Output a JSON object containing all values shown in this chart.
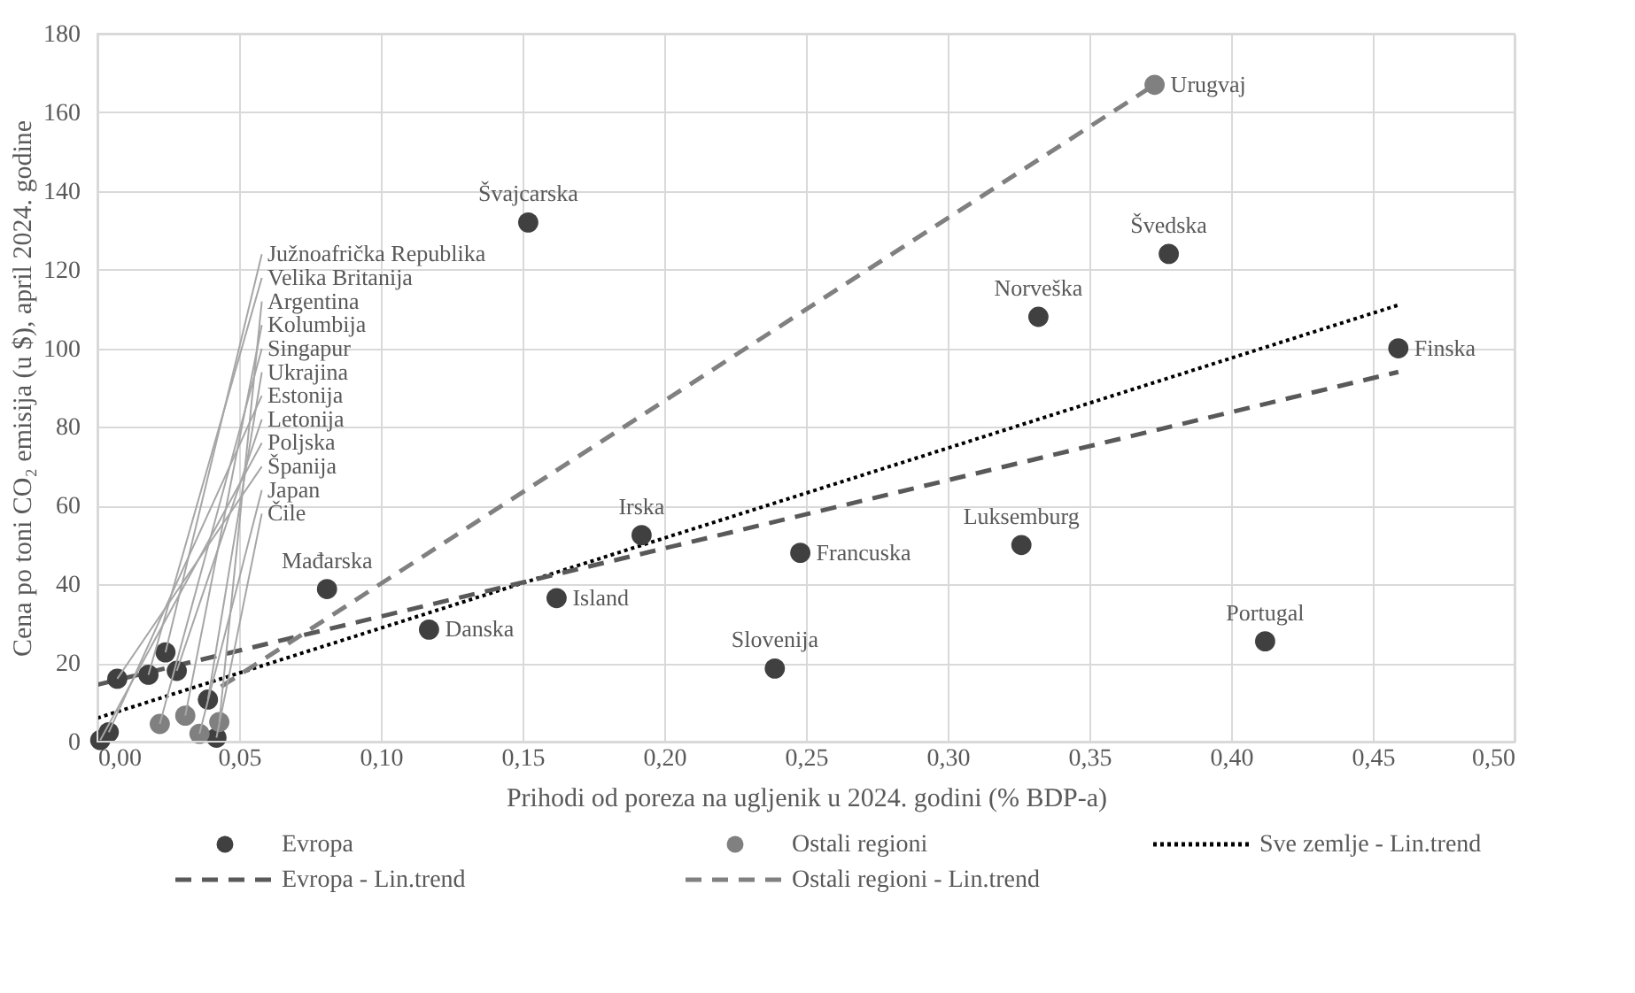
{
  "chart_data": {
    "type": "scatter",
    "xlabel": "Prihodi od poreza na ugljenik u 2024. godini  (% BDP-a)",
    "ylabel": "Cena po toni CO₂ emisija (u $), april 2024. godine",
    "xlim": [
      0,
      0.5
    ],
    "ylim": [
      0,
      180
    ],
    "xticks": [
      {
        "value": 0,
        "label": "0,00"
      },
      {
        "value": 0.05,
        "label": "0,05"
      },
      {
        "value": 0.1,
        "label": "0,10"
      },
      {
        "value": 0.15,
        "label": "0,15"
      },
      {
        "value": 0.2,
        "label": "0,20"
      },
      {
        "value": 0.25,
        "label": "0,25"
      },
      {
        "value": 0.3,
        "label": "0,30"
      },
      {
        "value": 0.35,
        "label": "0,35"
      },
      {
        "value": 0.4,
        "label": "0,40"
      },
      {
        "value": 0.45,
        "label": "0,45"
      },
      {
        "value": 0.5,
        "label": "0,50"
      }
    ],
    "yticks": [
      0,
      20,
      40,
      60,
      80,
      100,
      120,
      140,
      160,
      180
    ],
    "grid": true,
    "legend": "bottom",
    "marker": "circle",
    "series": [
      {
        "name": "Evropa",
        "color": "#404040",
        "x": [
          0.152,
          0.378,
          0.332,
          0.459,
          0.192,
          0.162,
          0.248,
          0.326,
          0.412,
          0.239,
          0.117,
          0.081,
          0.007,
          0.018,
          0.028,
          0.024,
          0.004,
          0.001,
          0.039,
          0.042
        ],
        "values": [
          132,
          124,
          108,
          100,
          52.5,
          36.5,
          48,
          50,
          25.5,
          18.6,
          28.5,
          38.8,
          16,
          17,
          18,
          22.7,
          2.4,
          0.4,
          10.7,
          1
        ]
      },
      {
        "name": "Ostali regioni",
        "color": "#808080",
        "x": [
          0.373,
          0.022,
          0.031,
          0.036,
          0.043
        ],
        "values": [
          167,
          4.5,
          6.6,
          2,
          5
        ]
      },
      {
        "name": "Sve zemlje - Lin.trend",
        "type": "line",
        "color": "#000000",
        "line_style": "dotted",
        "marker": "none",
        "x": [
          0,
          0.459
        ],
        "values": [
          6,
          111
        ]
      },
      {
        "name": "Evropa - Lin.trend",
        "type": "line",
        "color": "#595959",
        "line_style": "dashed",
        "marker": "none",
        "x": [
          0,
          0.459
        ],
        "values": [
          14.5,
          94
        ]
      },
      {
        "name": "Ostali regioni - Lin.trend",
        "type": "line",
        "color": "#808080",
        "line_style": "dashed",
        "marker": "none",
        "x": [
          0.02,
          0.373
        ],
        "values": [
          3,
          167
        ]
      }
    ],
    "annotations": [
      {
        "text": "Švajcarska",
        "x": 0.152,
        "y": 132
      },
      {
        "text": "Švedska",
        "x": 0.378,
        "y": 124
      },
      {
        "text": "Norveška",
        "x": 0.332,
        "y": 108
      },
      {
        "text": "Finska",
        "x": 0.459,
        "y": 100
      },
      {
        "text": "Irska",
        "x": 0.192,
        "y": 52.5
      },
      {
        "text": "Island",
        "x": 0.162,
        "y": 36.5
      },
      {
        "text": "Francuska",
        "x": 0.248,
        "y": 48
      },
      {
        "text": "Luksemburg",
        "x": 0.326,
        "y": 50
      },
      {
        "text": "Portugal",
        "x": 0.412,
        "y": 25.5
      },
      {
        "text": "Slovenija",
        "x": 0.239,
        "y": 18.6
      },
      {
        "text": "Danska",
        "x": 0.117,
        "y": 28.5
      },
      {
        "text": "Mađarska",
        "x": 0.081,
        "y": 38.8
      },
      {
        "text": "Španija",
        "x": 0.007,
        "y": 16
      },
      {
        "text": "Velika Britanija",
        "x": 0.018,
        "y": 17
      },
      {
        "text": "Letonija",
        "x": 0.028,
        "y": 18
      },
      {
        "text": "Južnoafrička Republika",
        "x": 0.024,
        "y": 22.7
      },
      {
        "text": "Estonija",
        "x": 0.004,
        "y": 2.4
      },
      {
        "text": "Poljska",
        "x": 0.001,
        "y": 0.4
      },
      {
        "text": "Ukrajina",
        "x": 0.039,
        "y": 10.7
      },
      {
        "text": "Čile",
        "x": 0.042,
        "y": 1
      },
      {
        "text": "Urugvaj",
        "x": 0.373,
        "y": 167
      },
      {
        "text": "Singapur",
        "x": 0.022,
        "y": 4.5
      },
      {
        "text": "Kolumbija",
        "x": 0.031,
        "y": 6.6
      },
      {
        "text": "Japan",
        "x": 0.036,
        "y": 2
      },
      {
        "text": "Argentina",
        "x": 0.043,
        "y": 5
      }
    ]
  }
}
